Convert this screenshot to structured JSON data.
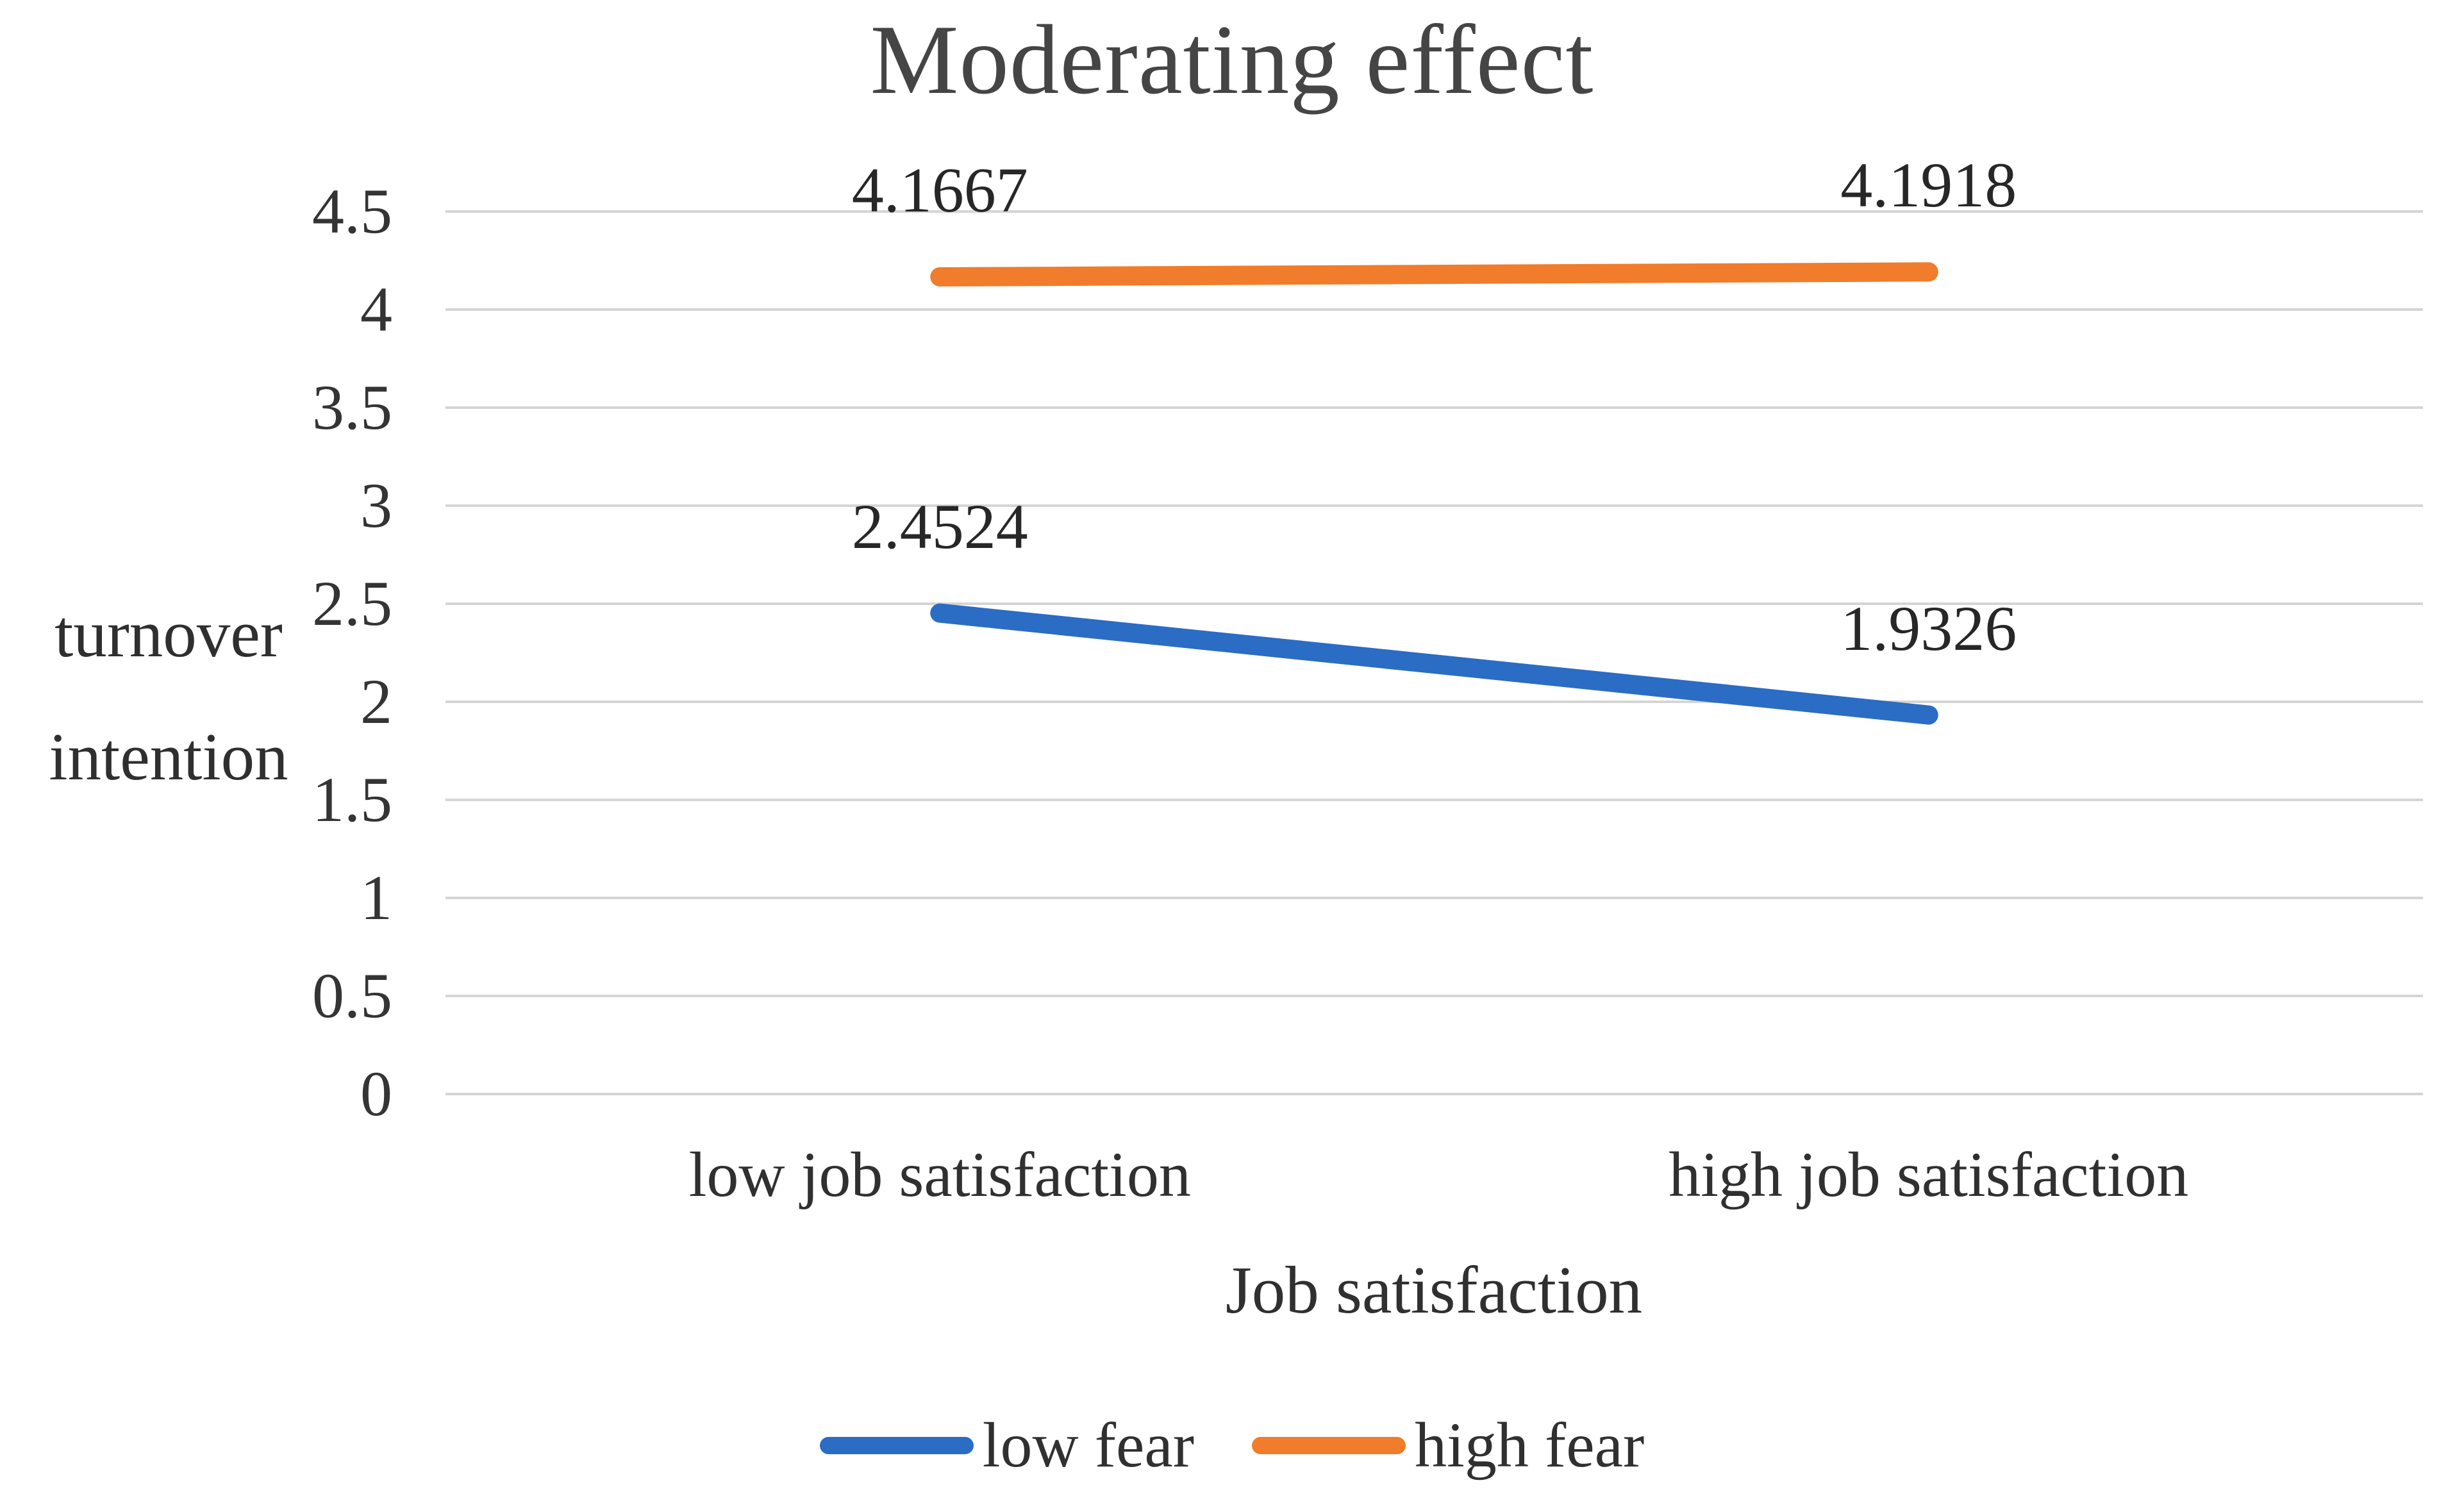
{
  "chart_data": {
    "type": "line",
    "title": "Moderating effect",
    "xlabel": "Job satisfaction",
    "ylabel": "turnover intention",
    "ylabel_lines": [
      "turnover",
      "intention"
    ],
    "categories": [
      "low job satisfaction",
      "high job satisfaction"
    ],
    "series": [
      {
        "name": "low fear",
        "color": "#2b6cc4",
        "values": [
          2.4524,
          1.9326
        ],
        "point_labels": [
          "2.4524",
          "1.9326"
        ]
      },
      {
        "name": "high fear",
        "color": "#f07c2c",
        "values": [
          4.1667,
          4.1918
        ],
        "point_labels": [
          "4.1667",
          "4.1918"
        ]
      }
    ],
    "ylim": [
      0,
      4.5
    ],
    "ytick_step": 0.5,
    "yticks": [
      "4.5",
      "4",
      "3.5",
      "3",
      "2.5",
      "2",
      "1.5",
      "1",
      "0.5",
      "0"
    ],
    "grid": true,
    "gridline_color": "#d5d5d5",
    "legend_position": "bottom"
  }
}
